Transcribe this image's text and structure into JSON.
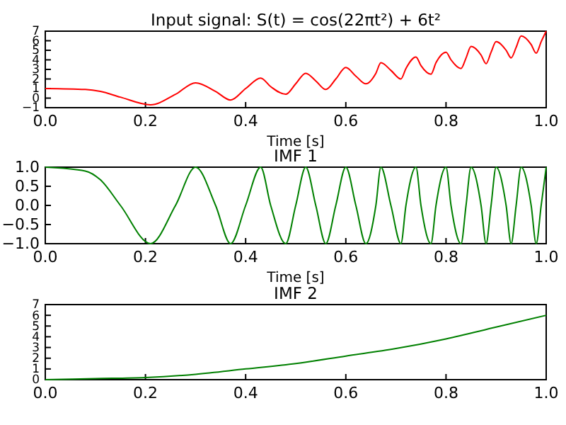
{
  "chart_data": [
    {
      "type": "line",
      "title": "Input signal: S(t) = cos(22πt²) + 6t²",
      "xlabel": "Time [s]",
      "color": "#ff0000",
      "x": [
        0,
        0.08,
        0.11,
        0.15,
        0.21,
        0.26,
        0.3,
        0.34,
        0.37,
        0.4,
        0.43,
        0.45,
        0.48,
        0.5,
        0.52,
        0.54,
        0.56,
        0.58,
        0.6,
        0.62,
        0.64,
        0.66,
        0.67,
        0.69,
        0.71,
        0.72,
        0.74,
        0.75,
        0.77,
        0.78,
        0.8,
        0.81,
        0.83,
        0.84,
        0.85,
        0.87,
        0.88,
        0.89,
        0.9,
        0.92,
        0.93,
        0.94,
        0.95,
        0.97,
        0.98,
        0.99,
        1.0
      ],
      "values": [
        1,
        0.9,
        0.7,
        0.1,
        -0.7,
        0.4,
        1.6,
        0.7,
        -0.2,
        1,
        2.1,
        1.2,
        0.4,
        1.5,
        2.6,
        1.8,
        0.9,
        2,
        3.2,
        2.3,
        1.5,
        2.6,
        3.7,
        2.9,
        2,
        3.1,
        4.3,
        3.4,
        2.5,
        3.7,
        4.8,
        4,
        3.1,
        4.2,
        5.4,
        4.5,
        3.6,
        4.8,
        5.9,
        5,
        4.2,
        5.3,
        6.5,
        5.6,
        4.7,
        5.9,
        7
      ],
      "xlim": [
        0,
        1
      ],
      "xticks": [
        {
          "value": 0,
          "label": "0.0"
        },
        {
          "value": 0.2,
          "label": "0.2"
        },
        {
          "value": 0.4,
          "label": "0.4"
        },
        {
          "value": 0.6,
          "label": "0.6"
        },
        {
          "value": 0.8,
          "label": "0.8"
        },
        {
          "value": 1,
          "label": "1.0"
        }
      ],
      "ylim": [
        -1,
        7
      ],
      "yticks": [
        -1,
        0,
        1,
        2,
        3,
        4,
        5,
        6,
        7
      ]
    },
    {
      "type": "line",
      "title": "IMF 1",
      "xlabel": "Time [s]",
      "color": "#008000",
      "x": [
        0,
        0.08,
        0.11,
        0.15,
        0.21,
        0.26,
        0.3,
        0.34,
        0.37,
        0.4,
        0.43,
        0.45,
        0.48,
        0.5,
        0.52,
        0.54,
        0.56,
        0.58,
        0.6,
        0.62,
        0.64,
        0.66,
        0.67,
        0.69,
        0.71,
        0.72,
        0.74,
        0.75,
        0.77,
        0.78,
        0.8,
        0.81,
        0.83,
        0.84,
        0.85,
        0.87,
        0.88,
        0.89,
        0.9,
        0.92,
        0.93,
        0.94,
        0.95,
        0.97,
        0.98,
        0.99,
        1.0
      ],
      "values": [
        1,
        0.9,
        0.67,
        0,
        -1,
        0,
        1,
        0,
        -1,
        0,
        1,
        0,
        -1,
        0,
        1,
        0,
        -1,
        0,
        1,
        0,
        -1,
        0,
        1,
        0,
        -1,
        0,
        1,
        0,
        -1,
        0,
        1,
        0,
        -1,
        0,
        1,
        0,
        -1,
        0,
        1,
        0,
        -1,
        0,
        1,
        0,
        -1,
        0,
        1
      ],
      "xlim": [
        0,
        1
      ],
      "xticks": [
        {
          "value": 0,
          "label": "0.0"
        },
        {
          "value": 0.2,
          "label": "0.2"
        },
        {
          "value": 0.4,
          "label": "0.4"
        },
        {
          "value": 0.6,
          "label": "0.6"
        },
        {
          "value": 0.8,
          "label": "0.8"
        },
        {
          "value": 1,
          "label": "1.0"
        }
      ],
      "ylim": [
        -1,
        1
      ],
      "yticks": [
        {
          "value": -1,
          "label": "−1.0"
        },
        {
          "value": -0.5,
          "label": "−0.5"
        },
        {
          "value": 0,
          "label": "0.0"
        },
        {
          "value": 0.5,
          "label": "0.5"
        },
        {
          "value": 1,
          "label": "1.0"
        }
      ]
    },
    {
      "type": "line",
      "title": "IMF 2",
      "color": "#008000",
      "x": [
        0,
        0.1,
        0.2,
        0.3,
        0.4,
        0.5,
        0.6,
        0.7,
        0.8,
        0.9,
        1.0
      ],
      "values": [
        0,
        0.1,
        0.2,
        0.5,
        1,
        1.5,
        2.2,
        2.9,
        3.8,
        4.9,
        6
      ],
      "xlim": [
        0,
        1
      ],
      "xticks": [
        {
          "value": 0,
          "label": "0.0"
        },
        {
          "value": 0.2,
          "label": "0.2"
        },
        {
          "value": 0.4,
          "label": "0.4"
        },
        {
          "value": 0.6,
          "label": "0.6"
        },
        {
          "value": 0.8,
          "label": "0.8"
        },
        {
          "value": 1,
          "label": "1.0"
        }
      ],
      "ylim": [
        0,
        7
      ],
      "yticks": [
        0,
        1,
        2,
        3,
        4,
        5,
        6,
        7
      ]
    }
  ]
}
